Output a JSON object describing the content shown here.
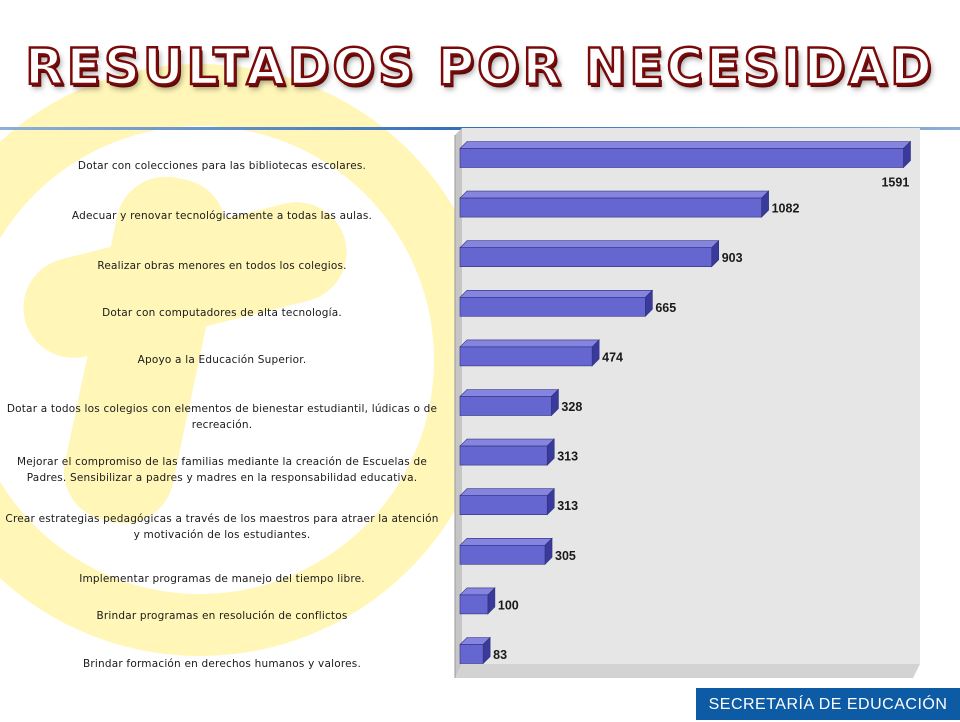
{
  "slide": {
    "title": "RESULTADOS POR NECESIDAD",
    "footer": "SECRETARÍA DE EDUCACIÓN"
  },
  "colors": {
    "bar_front": "#6666d0",
    "bar_top": "#8585e0",
    "bar_side": "#3a3a9a",
    "plot_back": "#e6e6e6",
    "plot_floor": "#c6c6c6",
    "decoration": "#fff6b8",
    "footer": "#0d5ba5",
    "title_outline": "#7a0a0a"
  },
  "chart_data": {
    "type": "bar",
    "orientation": "horizontal",
    "style": "3d",
    "categories": [
      "Dotar con colecciones para las bibliotecas escolares.",
      "Adecuar y renovar tecnológicamente a todas las aulas.",
      "Realizar obras menores en todos los colegios.",
      "Dotar  con computadores de alta tecnología.",
      "Apoyo a la Educación Superior.",
      "Dotar a todos los colegios con elementos de bienestar estudiantil, lúdicas o de recreación.",
      "Mejorar el compromiso de las familias mediante la creación de Escuelas de Padres. Sensibilizar a padres y madres en la responsabilidad educativa.",
      "Crear estrategias pedagógicas a través de los maestros para atraer la atención y motivación de los estudiantes.",
      "Implementar programas de manejo del tiempo libre.",
      "Brindar programas en resolución de conflictos",
      "Brindar formación en derechos humanos y valores."
    ],
    "values": [
      1591,
      1082,
      903,
      665,
      474,
      328,
      313,
      313,
      305,
      100,
      83
    ],
    "xlim": [
      0,
      1600
    ],
    "grid": false,
    "legend": "none",
    "data_labels": true
  }
}
